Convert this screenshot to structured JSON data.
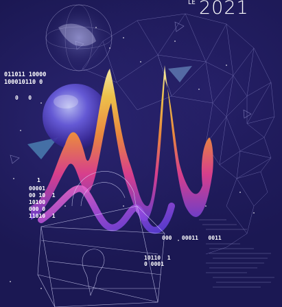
{
  "poster": {
    "year": "2021",
    "year_mark": "LE",
    "code_top": [
      "011011 10000",
      "100010110 0"
    ],
    "code_zeros": "0   0",
    "code_one": "1",
    "code_mid": [
      "00001",
      "00 10  1",
      "10100",
      "000 0",
      "11010  1"
    ],
    "code_bottom": "000   00011   0011",
    "code_corner": [
      "10110  1",
      "0 0001"
    ]
  },
  "colors": {
    "background": "#1b1853",
    "wave_gradient": [
      "#f4d03f",
      "#f39c12",
      "#e84393",
      "#9b59b6",
      "#6c5ce7"
    ]
  }
}
